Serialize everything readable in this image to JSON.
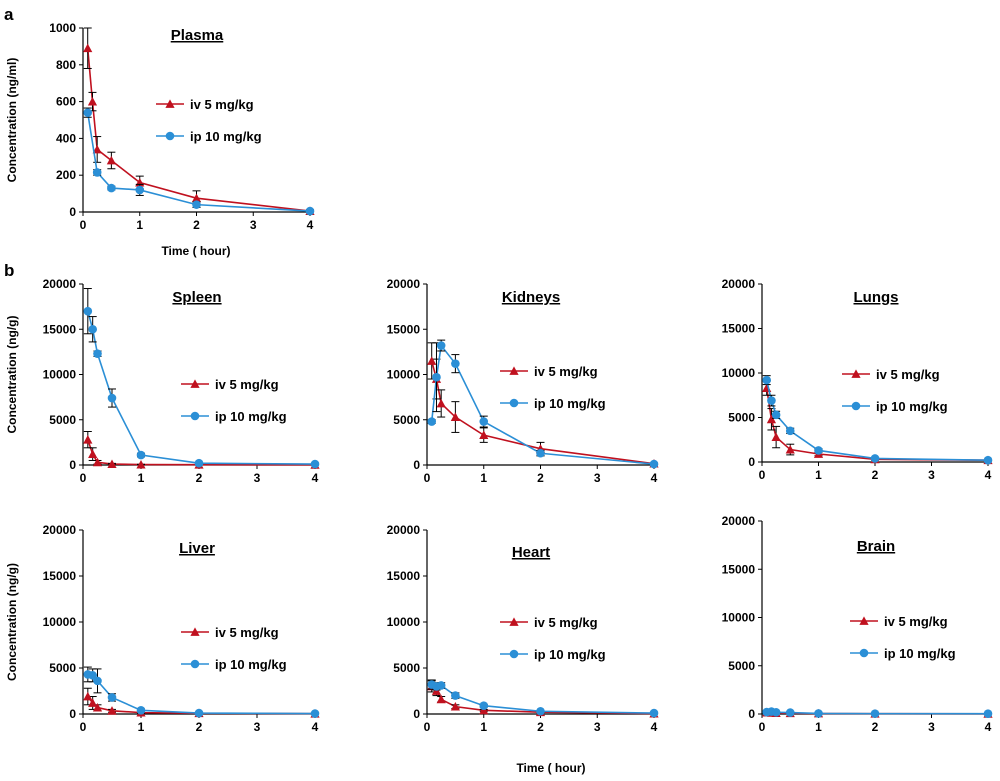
{
  "figure": {
    "panel_a_label": "a",
    "panel_b_label": "b",
    "shared_xlabel": "Time ( hour)"
  },
  "colors": {
    "iv": "#C0111F",
    "ip": "#2B8FD6",
    "axis": "#000000"
  },
  "chart_data": [
    {
      "id": "plasma",
      "type": "line",
      "title": "Plasma",
      "xlabel": "Time ( hour)",
      "ylabel": "Concentration (ng/ml)",
      "xlim": [
        0,
        4
      ],
      "ylim": [
        0,
        1000
      ],
      "xticks": [
        "0",
        "1",
        "2",
        "3",
        "4"
      ],
      "yticks": [
        "0",
        "200",
        "400",
        "600",
        "800",
        "1000"
      ],
      "legend_position": "center-right",
      "series": [
        {
          "name": "iv 5 mg/kg",
          "marker": "triangle",
          "x": [
            0.083,
            0.167,
            0.25,
            0.5,
            1,
            2,
            4
          ],
          "y": [
            890,
            600,
            340,
            280,
            160,
            75,
            5
          ],
          "err": [
            110,
            50,
            70,
            45,
            35,
            40,
            8
          ]
        },
        {
          "name": "ip 10 mg/kg",
          "marker": "circle",
          "x": [
            0.083,
            0.25,
            0.5,
            1,
            2,
            4
          ],
          "y": [
            540,
            215,
            130,
            120,
            40,
            5
          ],
          "err": [
            25,
            15,
            10,
            30,
            15,
            5
          ]
        }
      ]
    },
    {
      "id": "spleen",
      "type": "line",
      "title": "Spleen",
      "xlabel": "",
      "ylabel": "Concentration (ng/g)",
      "xlim": [
        0,
        4
      ],
      "ylim": [
        0,
        20000
      ],
      "xticks": [
        "0",
        "1",
        "2",
        "3",
        "4"
      ],
      "yticks": [
        "0",
        "5000",
        "10000",
        "15000",
        "20000"
      ],
      "legend_position": "center-right",
      "series": [
        {
          "name": "iv  5 mg/kg",
          "marker": "triangle",
          "x": [
            0.083,
            0.167,
            0.25,
            0.5,
            1,
            2,
            4
          ],
          "y": [
            2800,
            1200,
            300,
            100,
            50,
            30,
            20
          ],
          "err": [
            900,
            700,
            200,
            80,
            30,
            20,
            10
          ]
        },
        {
          "name": "ip  10 mg/kg",
          "marker": "circle",
          "x": [
            0.083,
            0.167,
            0.25,
            0.5,
            1,
            2,
            4
          ],
          "y": [
            17000,
            15000,
            12300,
            7400,
            1100,
            200,
            100
          ],
          "err": [
            2500,
            1400,
            300,
            1000,
            200,
            50,
            30
          ]
        }
      ]
    },
    {
      "id": "kidneys",
      "type": "line",
      "title": "Kidneys",
      "xlabel": "",
      "ylabel": "",
      "xlim": [
        0,
        4
      ],
      "ylim": [
        0,
        20000
      ],
      "xticks": [
        "0",
        "1",
        "2",
        "3",
        "4"
      ],
      "yticks": [
        "0",
        "5000",
        "10000",
        "15000",
        "20000"
      ],
      "legend_position": "center-right",
      "series": [
        {
          "name": "iv  5 mg/kg",
          "marker": "triangle",
          "x": [
            0.083,
            0.167,
            0.25,
            0.5,
            1,
            2,
            4
          ],
          "y": [
            11500,
            9500,
            6800,
            5300,
            3300,
            1800,
            150
          ],
          "err": [
            2000,
            2200,
            1500,
            1700,
            800,
            700,
            80
          ]
        },
        {
          "name": "ip  10 mg/kg",
          "marker": "circle",
          "x": [
            0.083,
            0.167,
            0.25,
            0.5,
            1,
            2,
            4
          ],
          "y": [
            4800,
            9700,
            13200,
            11200,
            4800,
            1300,
            100
          ],
          "err": [
            200,
            3800,
            600,
            1000,
            600,
            300,
            50
          ]
        }
      ]
    },
    {
      "id": "lungs",
      "type": "line",
      "title": "Lungs",
      "xlabel": "",
      "ylabel": "",
      "xlim": [
        0,
        4
      ],
      "ylim": [
        0,
        20000
      ],
      "xticks": [
        "0",
        "1",
        "2",
        "3",
        "4"
      ],
      "yticks": [
        "0",
        "5000",
        "10000",
        "15000",
        "20000"
      ],
      "legend_position": "center-right",
      "series": [
        {
          "name": "iv  5 mg/kg",
          "marker": "triangle",
          "x": [
            0.083,
            0.167,
            0.25,
            0.5,
            1,
            2,
            4
          ],
          "y": [
            8300,
            4800,
            2800,
            1400,
            900,
            300,
            200
          ],
          "err": [
            800,
            1200,
            1200,
            600,
            200,
            100,
            50
          ]
        },
        {
          "name": "ip  10 mg/kg",
          "marker": "circle",
          "x": [
            0.083,
            0.167,
            0.25,
            0.5,
            1,
            2,
            4
          ],
          "y": [
            9200,
            6900,
            5300,
            3500,
            1300,
            400,
            200
          ],
          "err": [
            500,
            600,
            400,
            300,
            200,
            100,
            50
          ]
        }
      ]
    },
    {
      "id": "liver",
      "type": "line",
      "title": "Liver",
      "xlabel": "",
      "ylabel": "Concentration (ng/g)",
      "xlim": [
        0,
        4
      ],
      "ylim": [
        0,
        20000
      ],
      "xticks": [
        "0",
        "1",
        "2",
        "3",
        "4"
      ],
      "yticks": [
        "0",
        "5000",
        "10000",
        "15000",
        "20000"
      ],
      "legend_position": "center-right",
      "series": [
        {
          "name": "iv  5 mg/kg",
          "marker": "triangle",
          "x": [
            0.083,
            0.167,
            0.25,
            0.5,
            1,
            2,
            4
          ],
          "y": [
            1900,
            1200,
            700,
            350,
            150,
            80,
            30
          ],
          "err": [
            900,
            700,
            300,
            150,
            100,
            50,
            20
          ]
        },
        {
          "name": "ip  10 mg/kg",
          "marker": "circle",
          "x": [
            0.083,
            0.167,
            0.25,
            0.5,
            1,
            2,
            4
          ],
          "y": [
            4300,
            4200,
            3600,
            1800,
            400,
            100,
            50
          ],
          "err": [
            800,
            700,
            1300,
            400,
            150,
            50,
            20
          ]
        }
      ]
    },
    {
      "id": "heart",
      "type": "line",
      "title": "Heart",
      "xlabel": "",
      "ylabel": "",
      "xlim": [
        0,
        4
      ],
      "ylim": [
        0,
        20000
      ],
      "xticks": [
        "0",
        "1",
        "2",
        "3",
        "4"
      ],
      "yticks": [
        "0",
        "5000",
        "10000",
        "15000",
        "20000"
      ],
      "legend_position": "center-right",
      "series": [
        {
          "name": "iv  5 mg/kg",
          "marker": "triangle",
          "x": [
            0.083,
            0.167,
            0.25,
            0.5,
            1,
            2,
            4
          ],
          "y": [
            3000,
            2500,
            1600,
            800,
            400,
            200,
            50
          ],
          "err": [
            600,
            500,
            300,
            200,
            100,
            50,
            20
          ]
        },
        {
          "name": "ip  10 mg/kg",
          "marker": "circle",
          "x": [
            0.083,
            0.167,
            0.25,
            0.5,
            1,
            2,
            4
          ],
          "y": [
            3200,
            3000,
            3100,
            2000,
            900,
            300,
            100
          ],
          "err": [
            500,
            400,
            300,
            300,
            150,
            80,
            30
          ]
        }
      ]
    },
    {
      "id": "brain",
      "type": "line",
      "title": "Brain",
      "xlabel": "",
      "ylabel": "",
      "xlim": [
        0,
        4
      ],
      "ylim": [
        0,
        20000
      ],
      "xticks": [
        "0",
        "1",
        "2",
        "3",
        "4"
      ],
      "yticks": [
        "0",
        "5000",
        "10000",
        "15000",
        "20000"
      ],
      "legend_position": "center-right",
      "series": [
        {
          "name": "iv  5 mg/kg",
          "marker": "triangle",
          "x": [
            0.083,
            0.167,
            0.25,
            0.5,
            1,
            2,
            4
          ],
          "y": [
            150,
            120,
            100,
            80,
            50,
            30,
            20
          ],
          "err": [
            50,
            40,
            30,
            20,
            20,
            10,
            10
          ]
        },
        {
          "name": "ip  10 mg/kg",
          "marker": "circle",
          "x": [
            0.083,
            0.167,
            0.25,
            0.5,
            1,
            2,
            4
          ],
          "y": [
            200,
            250,
            180,
            150,
            60,
            40,
            30
          ],
          "err": [
            80,
            60,
            50,
            40,
            20,
            10,
            10
          ]
        }
      ]
    }
  ]
}
